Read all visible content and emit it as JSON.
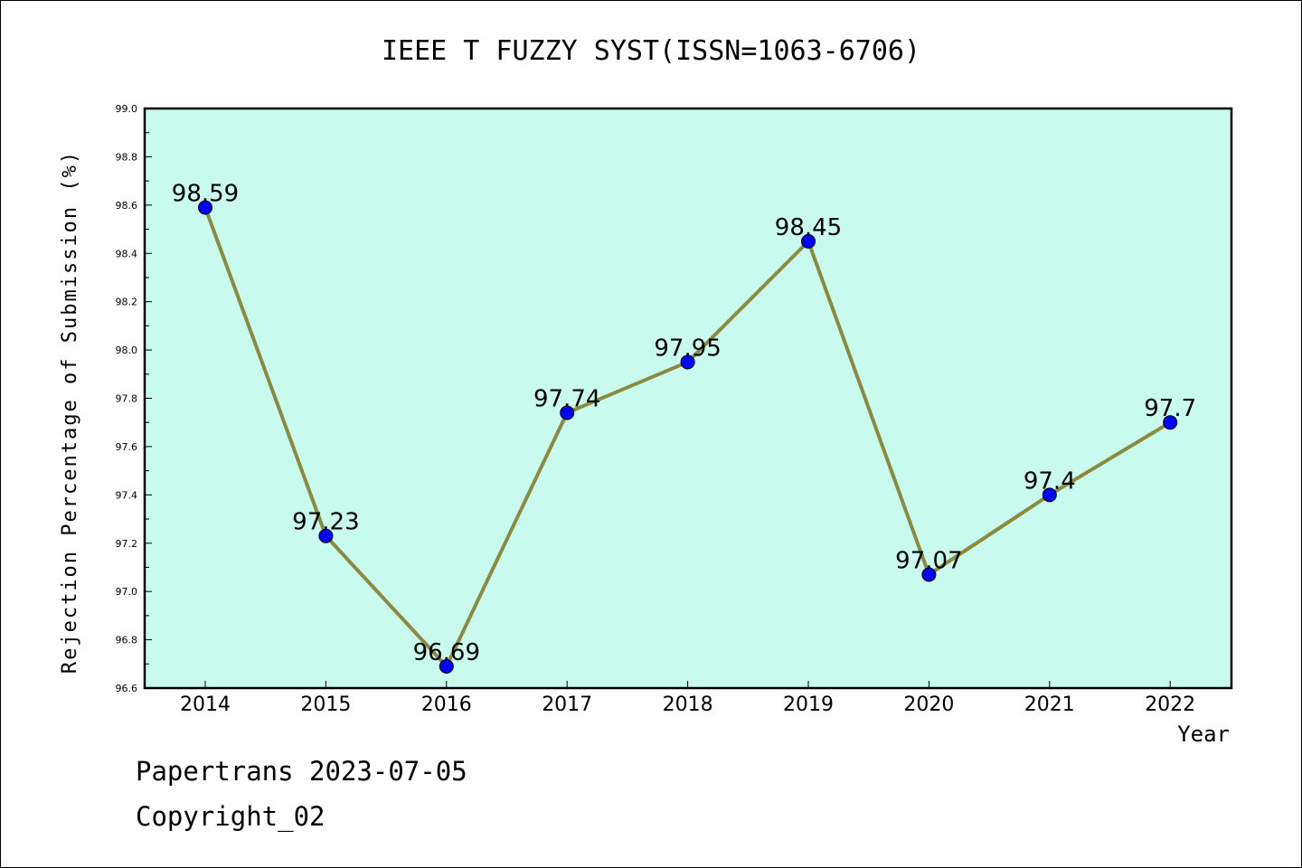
{
  "chart_data": {
    "type": "line",
    "title": "IEEE T FUZZY SYST(ISSN=1063-6706)",
    "xlabel": "Year",
    "ylabel": "Rejection Percentage of Submission (%)",
    "x": [
      "2014",
      "2015",
      "2016",
      "2017",
      "2018",
      "2019",
      "2020",
      "2021",
      "2022"
    ],
    "series": [
      {
        "values": [
          98.59,
          97.23,
          96.69,
          97.74,
          97.95,
          98.45,
          97.07,
          97.4,
          97.7
        ],
        "labels": [
          "98.59",
          "97.23",
          "96.69",
          "97.74",
          "97.95",
          "98.45",
          "97.07",
          "97.4",
          "97.7"
        ]
      }
    ],
    "ylim": [
      96.6,
      99.0
    ],
    "yticks": [
      "96.6",
      "96.8",
      "97.0",
      "97.2",
      "97.4",
      "97.6",
      "97.8",
      "98.0",
      "98.2",
      "98.4",
      "98.6",
      "98.8",
      "99.0"
    ],
    "grid": false,
    "colors": {
      "plot_background": "#c8fbee",
      "line": "#8b8a3e",
      "marker": "#0000ff"
    }
  },
  "footer": {
    "line1": "Papertrans 2023-07-05",
    "line2": "Copyright_02"
  }
}
